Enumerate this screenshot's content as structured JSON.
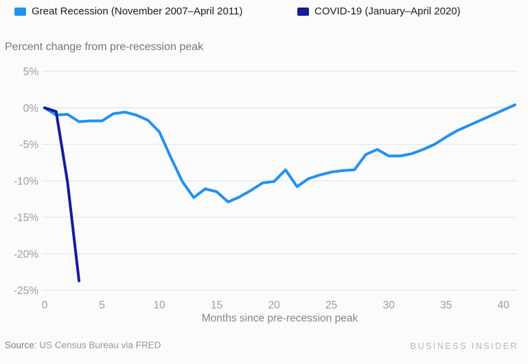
{
  "legend": {
    "items": [
      {
        "label": "Great Recession (November 2007–April 2011)",
        "color": "#2191f3"
      },
      {
        "label": "COVID-19 (January–April 2020)",
        "color": "#171b9e"
      }
    ]
  },
  "subtitle": "Percent change from pre-recession peak",
  "chart_data": {
    "type": "line",
    "title": "",
    "subtitle": "Percent change from pre-recession peak",
    "xlabel": "Months since pre-recession peak",
    "ylabel": "Percent change from pre-recession peak",
    "xlim": [
      0,
      41
    ],
    "ylim": [
      -25,
      5
    ],
    "x_ticks": [
      0,
      5,
      10,
      15,
      20,
      25,
      30,
      35,
      40
    ],
    "y_ticks": [
      5,
      0,
      -5,
      -10,
      -15,
      -20,
      -25
    ],
    "y_tick_suffix": "%",
    "grid": "horizontal",
    "legend_position": "top",
    "series": [
      {
        "name": "Great Recession (November 2007–April 2011)",
        "color": "#2191f3",
        "x_start": 0,
        "x_step": 1,
        "values": [
          0,
          -1.0,
          -0.9,
          -1.9,
          -1.8,
          -1.8,
          -0.8,
          -0.6,
          -1.0,
          -1.7,
          -3.3,
          -6.8,
          -10.1,
          -12.3,
          -11.1,
          -11.5,
          -12.9,
          -12.2,
          -11.3,
          -10.3,
          -10.1,
          -8.5,
          -10.8,
          -9.7,
          -9.2,
          -8.8,
          -8.6,
          -8.5,
          -6.4,
          -5.7,
          -6.6,
          -6.6,
          -6.3,
          -5.7,
          -5.0,
          -4.0,
          -3.1,
          -2.4,
          -1.7,
          -1.0,
          -0.3,
          0.4
        ]
      },
      {
        "name": "COVID-19 (January–April 2020)",
        "color": "#171b9e",
        "x_start": 0,
        "x_step": 1,
        "values": [
          0,
          -0.5,
          -10.2,
          -23.7
        ]
      }
    ]
  },
  "footer": {
    "source_label": "Source:",
    "source_text": "US Census Bureau via FRED",
    "brand": "BUSINESS INSIDER"
  }
}
